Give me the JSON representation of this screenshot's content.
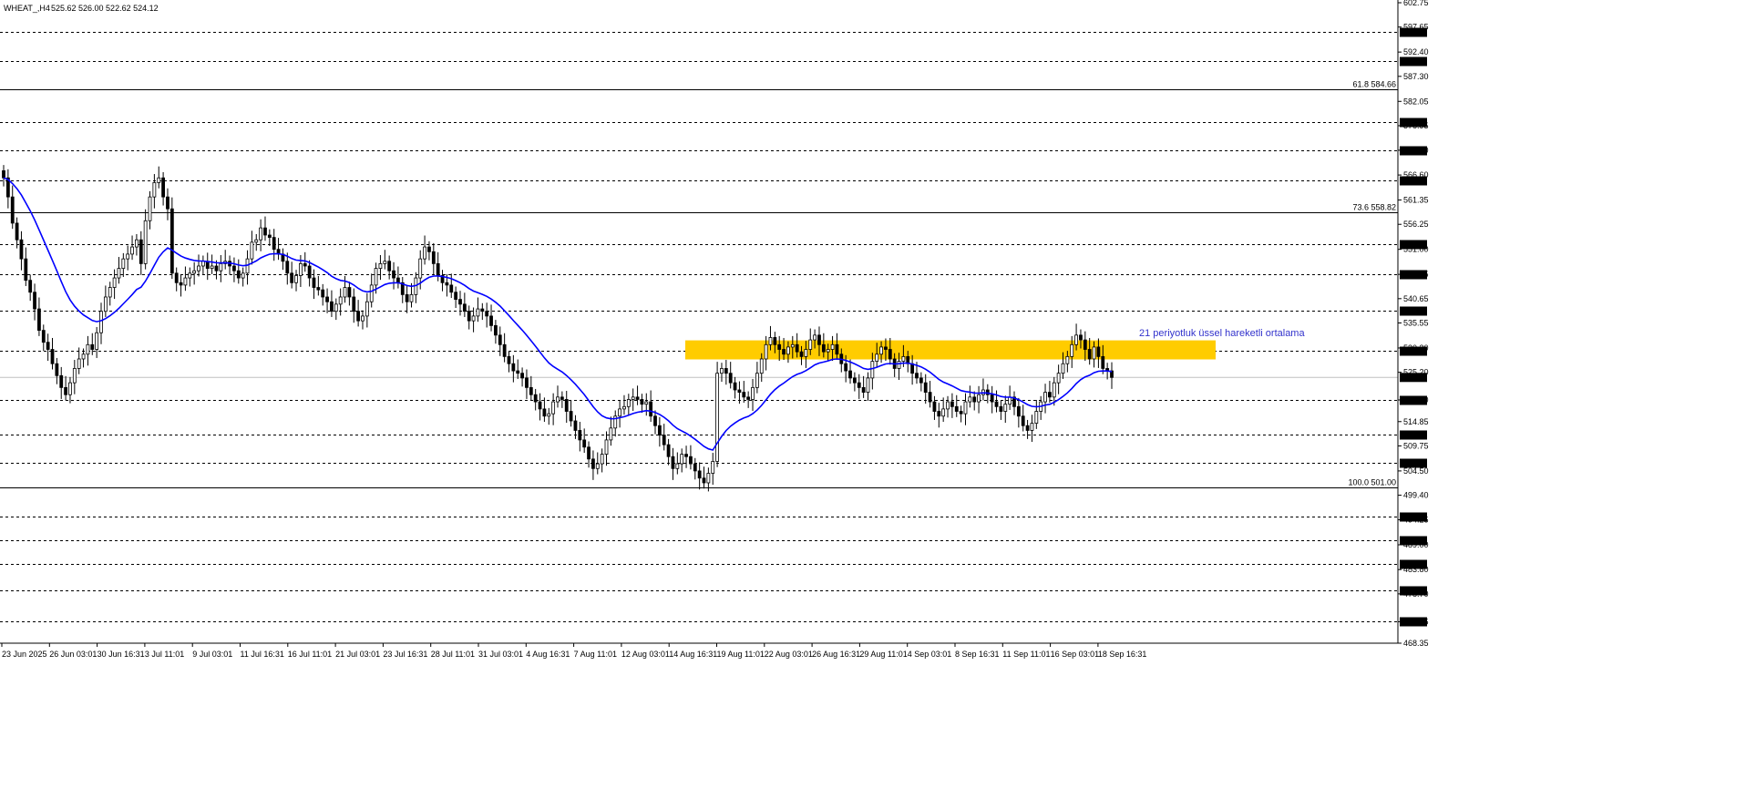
{
  "header": {
    "symbol": "WHEAT_,H4",
    "ohlc": "525.62 526.00 522.62 524.12"
  },
  "chart_data": {
    "type": "candlestick",
    "timeframe": "H4",
    "ylim": [
      468.35,
      602.75
    ],
    "price_ticks": [
      "602.75",
      "597.65",
      "592.40",
      "587.30",
      "582.05",
      "576.95",
      "571.80",
      "566.60",
      "561.35",
      "556.25",
      "551.00",
      "545.75",
      "540.65",
      "535.55",
      "530.30",
      "525.20",
      "519.40",
      "514.85",
      "509.75",
      "504.50",
      "499.40",
      "494.25",
      "489.00",
      "483.80",
      "478.70",
      "472.85",
      "468.35"
    ],
    "x_labels": [
      "23 Jun 2025",
      "26 Jun 03:01",
      "30 Jun 16:31",
      "3 Jul 11:01",
      "9 Jul 03:01",
      "11 Jul 16:31",
      "16 Jul 11:01",
      "21 Jul 03:01",
      "23 Jul 16:31",
      "28 Jul 11:01",
      "31 Jul 03:01",
      "4 Aug 16:31",
      "7 Aug 11:01",
      "12 Aug 03:01",
      "14 Aug 16:31",
      "19 Aug 11:01",
      "22 Aug 03:01",
      "26 Aug 16:31",
      "29 Aug 11:01",
      "4 Sep 03:01",
      "8 Sep 16:31",
      "11 Sep 11:01",
      "16 Sep 03:01",
      "18 Sep 16:31"
    ],
    "dashed_levels": [
      596.6,
      590.45,
      577.7,
      571.8,
      565.45,
      552.0,
      545.75,
      538.05,
      529.8,
      519.4,
      512.15,
      506.25,
      495.0,
      490.0,
      485.0,
      479.4,
      472.85
    ],
    "fib_levels": [
      {
        "label": "61.8 584.66",
        "value": 584.66
      },
      {
        "label": "73.6 558.82",
        "value": 558.82
      },
      {
        "label": "100.0 501.00",
        "value": 501.0
      }
    ],
    "current_price": {
      "label": "524.12",
      "value": 524.12
    },
    "ema_annotation": "21 periyotluk üssel hareketli ortalama",
    "resistance_zone": {
      "low": 527.9,
      "high": 531.9
    },
    "closes": [
      566.0,
      562.0,
      556.5,
      553.0,
      549.0,
      544.5,
      542.0,
      538.5,
      534.0,
      531.5,
      530.0,
      527.0,
      524.5,
      522.0,
      520.5,
      523.0,
      526.0,
      528.0,
      529.0,
      531.0,
      530.0,
      533.5,
      538.0,
      541.0,
      543.0,
      545.0,
      547.0,
      549.0,
      550.0,
      551.5,
      553.0,
      548.0,
      557.0,
      562.0,
      565.0,
      566.0,
      562.0,
      559.5,
      546.0,
      544.0,
      543.5,
      545.0,
      546.0,
      546.5,
      547.5,
      548.5,
      547.0,
      547.5,
      546.5,
      548.0,
      548.5,
      547.5,
      546.5,
      545.0,
      546.0,
      549.0,
      552.5,
      553.0,
      555.5,
      554.0,
      553.5,
      551.0,
      550.0,
      548.5,
      546.0,
      544.0,
      545.5,
      548.0,
      547.5,
      545.0,
      543.0,
      542.5,
      541.0,
      540.0,
      538.0,
      539.5,
      541.0,
      543.0,
      541.0,
      538.0,
      536.0,
      537.0,
      540.0,
      543.5,
      547.0,
      548.0,
      548.5,
      546.5,
      545.0,
      544.0,
      541.5,
      540.0,
      541.5,
      545.0,
      549.0,
      551.5,
      550.5,
      548.0,
      545.5,
      544.0,
      543.5,
      542.0,
      540.5,
      539.5,
      538.0,
      536.0,
      537.0,
      538.5,
      538.0,
      537.0,
      535.0,
      533.0,
      531.0,
      528.5,
      527.0,
      525.5,
      525.0,
      524.0,
      522.0,
      520.5,
      519.0,
      517.5,
      516.0,
      516.5,
      519.0,
      520.0,
      519.5,
      517.0,
      515.0,
      513.0,
      511.0,
      509.5,
      507.0,
      505.0,
      506.0,
      508.0,
      511.0,
      513.5,
      516.0,
      517.5,
      518.0,
      519.5,
      520.0,
      519.5,
      518.5,
      519.0,
      516.0,
      514.0,
      512.0,
      510.0,
      507.5,
      505.0,
      506.0,
      508.0,
      507.5,
      506.0,
      504.5,
      503.0,
      502.0,
      504.0,
      506.5,
      525.0,
      526.0,
      525.0,
      523.0,
      521.5,
      521.0,
      520.0,
      519.5,
      522.0,
      525.0,
      528.0,
      531.0,
      532.5,
      531.0,
      530.0,
      529.0,
      530.5,
      531.0,
      529.5,
      528.5,
      530.0,
      532.0,
      533.0,
      531.0,
      529.5,
      530.0,
      531.0,
      529.0,
      527.0,
      525.5,
      524.0,
      523.0,
      522.0,
      521.0,
      524.0,
      527.5,
      529.0,
      530.5,
      530.0,
      528.0,
      526.0,
      527.5,
      528.5,
      527.0,
      525.0,
      524.0,
      523.0,
      521.0,
      519.0,
      517.0,
      516.0,
      517.5,
      519.0,
      518.0,
      517.0,
      516.5,
      519.0,
      520.0,
      519.0,
      520.5,
      521.5,
      520.5,
      519.0,
      518.0,
      517.0,
      518.5,
      520.0,
      518.0,
      516.0,
      514.0,
      513.0,
      514.5,
      517.0,
      519.0,
      521.0,
      520.0,
      523.0,
      525.0,
      527.0,
      528.5,
      531.0,
      533.0,
      532.0,
      530.0,
      528.0,
      530.5,
      528.5,
      526.0,
      525.5,
      524.12
    ]
  },
  "colors": {
    "background": "#ffffff",
    "candle": "#000000",
    "ema": "#0000ff",
    "zone": "#ffcc00",
    "annotation": "#3333cc",
    "dashed_line": "#000000",
    "current_line": "#c0c0c0"
  }
}
